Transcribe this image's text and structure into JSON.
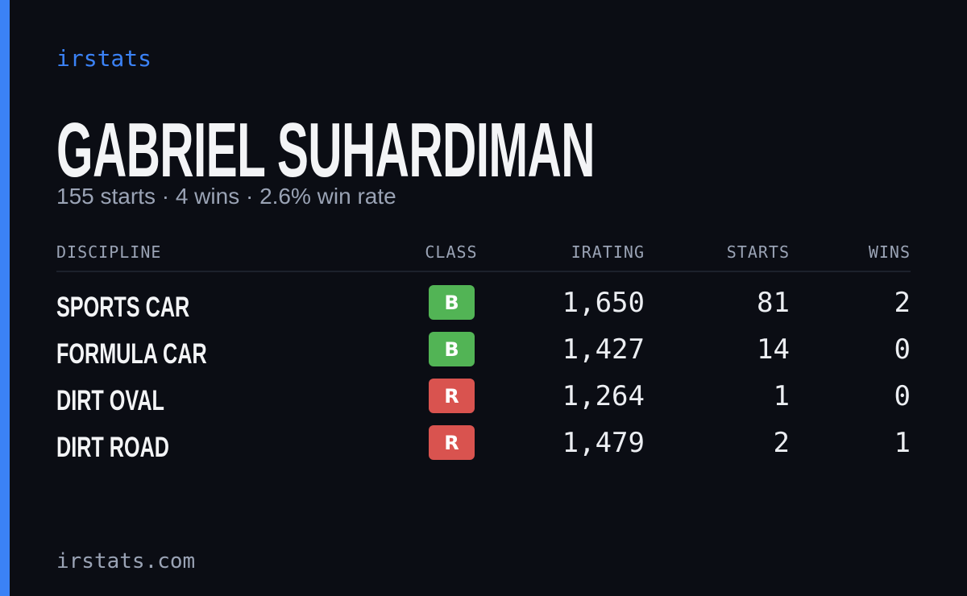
{
  "brand": "irstats",
  "driver": {
    "name": "GABRIEL SUHARDIMAN",
    "summary": "155 starts · 4 wins · 2.6% win rate"
  },
  "table": {
    "headers": [
      "DISCIPLINE",
      "CLASS",
      "IRATING",
      "STARTS",
      "WINS"
    ],
    "rows": [
      {
        "discipline": "SPORTS CAR",
        "class": "B",
        "class_color": "#52b455",
        "irating": "1,650",
        "starts": "81",
        "wins": "2"
      },
      {
        "discipline": "FORMULA CAR",
        "class": "B",
        "class_color": "#52b455",
        "irating": "1,427",
        "starts": "14",
        "wins": "0"
      },
      {
        "discipline": "DIRT OVAL",
        "class": "R",
        "class_color": "#d9534f",
        "irating": "1,264",
        "starts": "1",
        "wins": "0"
      },
      {
        "discipline": "DIRT ROAD",
        "class": "R",
        "class_color": "#d9534f",
        "irating": "1,479",
        "starts": "2",
        "wins": "1"
      }
    ]
  },
  "footer": "irstats.com"
}
